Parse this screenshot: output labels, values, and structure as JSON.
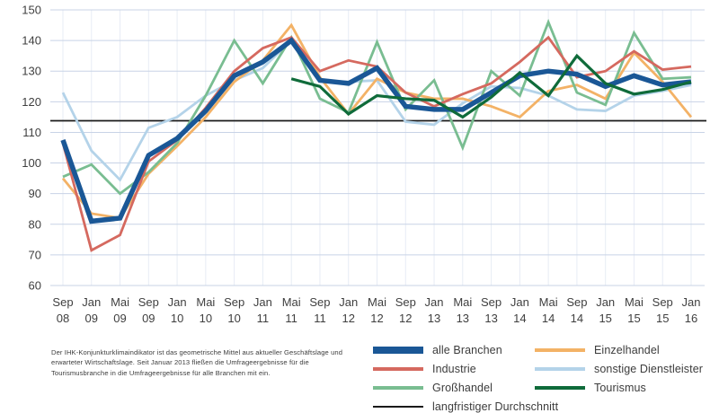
{
  "footnote": "Der IHK-Konjunkturklimaindikator ist das geometrische Mittel aus aktueller Geschäftslage und erwarteter Wirtschaftslage. Seit Januar 2013 fließen die Umfrageergebnisse für die Tourismusbranche in die Umfrageergebnisse für alle Branchen mit ein.",
  "chart_data": {
    "type": "line",
    "title": "",
    "categories": [
      "Sep 08",
      "Jan 09",
      "Mai 09",
      "Sep 09",
      "Jan 10",
      "Mai 10",
      "Sep 10",
      "Jan 11",
      "Mai 11",
      "Sep 11",
      "Jan 12",
      "Mai 12",
      "Sep 12",
      "Jan 13",
      "Mai 13",
      "Sep 13",
      "Jan 14",
      "Mai 14",
      "Sep 14",
      "Jan 15",
      "Mai 15",
      "Sep 15",
      "Jan 16"
    ],
    "ylim": [
      60,
      150
    ],
    "ytick_step": 10,
    "grid": true,
    "baseline": {
      "label": "langfristiger Durchschnitt",
      "value": 113.8,
      "color": "#1a1a1a"
    },
    "series": [
      {
        "name": "alle Branchen",
        "color": "#1a5796",
        "thick": true,
        "values": [
          107.5,
          81,
          82,
          102.5,
          108,
          117,
          128.5,
          133,
          140,
          127,
          126,
          131,
          118.5,
          117.5,
          117.5,
          123,
          128.5,
          130,
          129,
          125,
          128.5,
          125.5,
          126.5
        ]
      },
      {
        "name": "Industrie",
        "color": "#d5695f",
        "thick": false,
        "values": [
          106.5,
          71.5,
          76.5,
          100.5,
          107.5,
          118,
          130,
          137.5,
          141,
          130,
          133.5,
          131.5,
          123,
          118.5,
          122.5,
          126,
          133,
          141,
          128,
          130,
          136.5,
          130.5,
          131.5
        ]
      },
      {
        "name": "Großhandel",
        "color": "#79bd91",
        "thick": false,
        "values": [
          95.5,
          99.5,
          90,
          97,
          106.5,
          122,
          140,
          126,
          141,
          121,
          116.5,
          139.5,
          117.5,
          127,
          105,
          130,
          122,
          146,
          123,
          119,
          142.5,
          127.5,
          128
        ]
      },
      {
        "name": "Einzelhandel",
        "color": "#f3b266",
        "thick": false,
        "values": [
          95,
          83.5,
          82,
          96.5,
          105.5,
          115,
          126.5,
          133.5,
          145,
          128,
          116,
          127.5,
          123,
          121,
          121,
          118.5,
          115,
          123.5,
          125.5,
          121,
          136,
          126.5,
          115
        ]
      },
      {
        "name": "sonstige Dienstleister",
        "color": "#b4d3e9",
        "thick": false,
        "values": [
          123,
          104,
          94.5,
          111.5,
          115,
          122,
          127,
          131,
          140,
          127,
          126.5,
          127,
          113.5,
          112.5,
          119.5,
          125,
          124.5,
          122,
          117.5,
          117,
          122,
          123.5,
          125.5
        ]
      },
      {
        "name": "Tourismus",
        "color": "#0f6b3a",
        "thick": false,
        "values": [
          null,
          null,
          null,
          null,
          null,
          null,
          null,
          null,
          127.5,
          125,
          116,
          122,
          121,
          120.5,
          115,
          121.5,
          129.5,
          122,
          135,
          126,
          122.5,
          124,
          126.5
        ]
      }
    ],
    "legend": {
      "position": "bottom-right",
      "columns": [
        [
          "alle Branchen",
          "Industrie",
          "Großhandel",
          "langfristiger Durchschnitt"
        ],
        [
          "Einzelhandel",
          "sonstige Dienstleister",
          "Tourismus"
        ]
      ]
    }
  }
}
